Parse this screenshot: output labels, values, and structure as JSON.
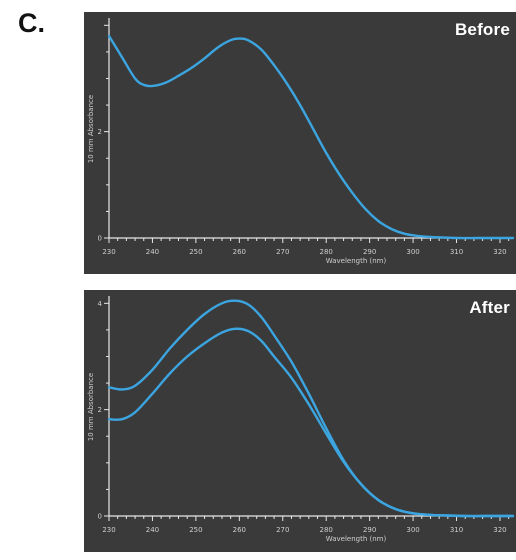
{
  "figure_label": "C.",
  "colors": {
    "background": "#3a3a3a",
    "series": "#3ca5e0",
    "axis": "#e8e8e8",
    "text": "#cfcfcf"
  },
  "chart_data": [
    {
      "type": "line",
      "title": "Before",
      "xlabel": "Wavelength (nm)",
      "ylabel": "10 mm Absorbance",
      "xlim": [
        230,
        323
      ],
      "ylim": [
        0,
        4.1
      ],
      "xticks": [
        230,
        240,
        250,
        260,
        270,
        280,
        290,
        300,
        310,
        320
      ],
      "yticks": [
        0,
        2
      ],
      "series": [
        {
          "x": [
            230,
            233,
            236,
            238,
            240,
            243,
            246,
            249,
            252,
            255,
            258,
            260,
            262,
            265,
            268,
            271,
            274,
            277,
            280,
            283,
            286,
            289,
            292,
            295,
            298,
            301,
            304,
            307,
            310,
            315,
            320,
            323
          ],
          "y": [
            3.8,
            3.4,
            3.0,
            2.88,
            2.86,
            2.92,
            3.05,
            3.2,
            3.38,
            3.58,
            3.72,
            3.75,
            3.72,
            3.55,
            3.25,
            2.9,
            2.5,
            2.05,
            1.6,
            1.2,
            0.85,
            0.55,
            0.32,
            0.17,
            0.08,
            0.04,
            0.02,
            0.01,
            0.0,
            0.0,
            0.0,
            0.0
          ]
        }
      ]
    },
    {
      "type": "line",
      "title": "After",
      "xlabel": "Wavelength (nm)",
      "ylabel": "10 mm Absorbance",
      "xlim": [
        230,
        323
      ],
      "ylim": [
        0,
        4.1
      ],
      "xticks": [
        230,
        240,
        250,
        260,
        270,
        280,
        290,
        300,
        310,
        320
      ],
      "yticks": [
        0,
        2,
        4
      ],
      "series": [
        {
          "x": [
            230,
            233,
            236,
            240,
            244,
            248,
            252,
            256,
            259,
            262,
            265,
            268,
            272,
            276,
            280,
            284,
            288,
            292,
            296,
            300,
            304,
            308,
            312,
            316,
            320,
            323
          ],
          "y": [
            2.42,
            2.38,
            2.45,
            2.75,
            3.15,
            3.5,
            3.8,
            4.0,
            4.05,
            3.98,
            3.75,
            3.4,
            2.9,
            2.3,
            1.65,
            1.05,
            0.6,
            0.3,
            0.13,
            0.05,
            0.02,
            0.01,
            0.0,
            0.0,
            0.0,
            0.0
          ]
        },
        {
          "x": [
            230,
            233,
            236,
            240,
            244,
            248,
            252,
            256,
            259,
            262,
            265,
            268,
            272,
            276,
            280,
            284,
            288,
            292,
            296,
            300,
            304,
            308,
            312,
            316,
            320,
            323
          ],
          "y": [
            1.82,
            1.82,
            1.95,
            2.3,
            2.68,
            3.0,
            3.25,
            3.45,
            3.52,
            3.48,
            3.3,
            3.0,
            2.6,
            2.1,
            1.55,
            1.02,
            0.6,
            0.3,
            0.13,
            0.05,
            0.02,
            0.01,
            0.0,
            0.0,
            0.0,
            0.0
          ]
        }
      ]
    }
  ]
}
